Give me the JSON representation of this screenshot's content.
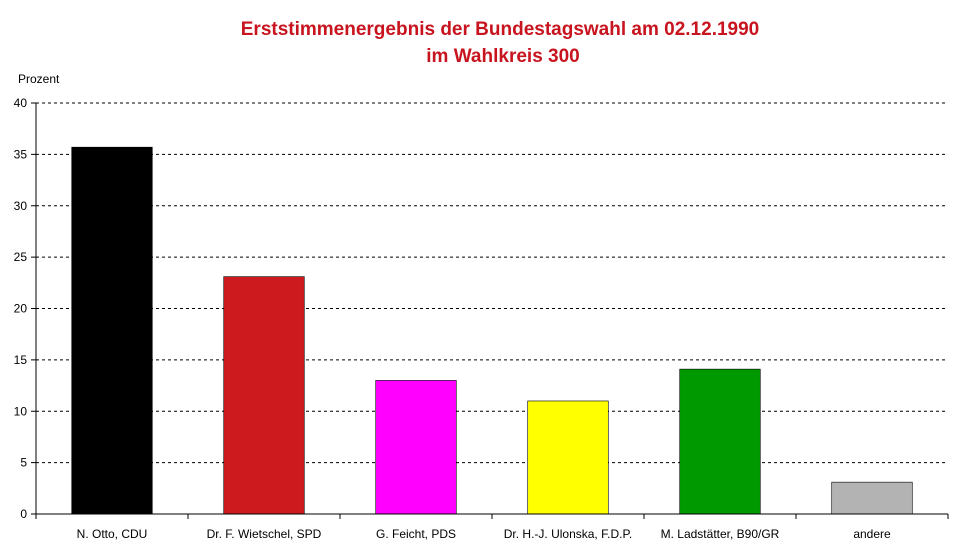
{
  "chart_data": {
    "type": "bar",
    "title": "Erststimmenergebnis der Bundestagswahl am 02.12.1990",
    "subtitle": "im Wahlkreis 300",
    "ylabel": "Prozent",
    "xlabel": "",
    "ylim": [
      0,
      40
    ],
    "yticks": [
      0,
      5,
      10,
      15,
      20,
      25,
      30,
      35,
      40
    ],
    "grid": true,
    "categories": [
      "N. Otto, CDU",
      "Dr. F. Wietschel, SPD",
      "G. Feicht, PDS",
      "Dr. H.-J. Ulonska, F.D.P.",
      "M. Ladstätter, B90/GR",
      "andere"
    ],
    "values": [
      35.7,
      23.1,
      13.0,
      11.0,
      14.1,
      3.1
    ],
    "colors": [
      "#000000",
      "#cc1a1f",
      "#ff00ff",
      "#ffff00",
      "#009900",
      "#b3b3b3"
    ]
  }
}
